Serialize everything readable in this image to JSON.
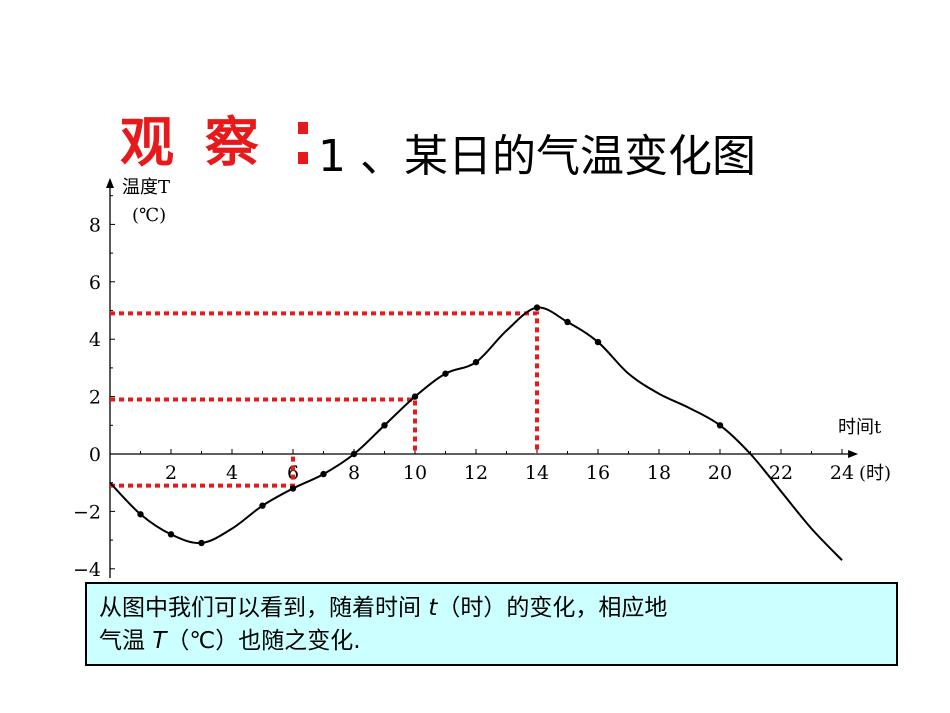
{
  "title": {
    "label": "观 察",
    "text": "1 、某日的气温变化图"
  },
  "chart_data": {
    "type": "line",
    "title": "",
    "xlabel": "时间t",
    "xunit": "(时)",
    "ylabel": "温度T",
    "yunit": "(℃)",
    "xlim": [
      0,
      24.2
    ],
    "ylim": [
      -4,
      9
    ],
    "x_ticks": [
      2,
      4,
      6,
      8,
      10,
      12,
      14,
      16,
      18,
      20,
      22,
      24
    ],
    "y_ticks": [
      -4,
      -2,
      0,
      2,
      4,
      6,
      8
    ],
    "grid": false,
    "curve": {
      "x": [
        0,
        1,
        2,
        3,
        4,
        5,
        6,
        7,
        8,
        9,
        10,
        11,
        12,
        13,
        14,
        15,
        16,
        17,
        18,
        19,
        20,
        21,
        22,
        23,
        24
      ],
      "y": [
        -1.0,
        -2.1,
        -2.8,
        -3.1,
        -2.6,
        -1.8,
        -1.2,
        -0.7,
        0.0,
        1.0,
        2.0,
        2.8,
        3.2,
        4.3,
        5.1,
        4.6,
        3.9,
        2.8,
        2.1,
        1.6,
        1.0,
        0.0,
        -1.3,
        -2.6,
        -3.7
      ]
    },
    "points": {
      "x": [
        1,
        2,
        3,
        5,
        6,
        7,
        8,
        9,
        10,
        11,
        12,
        14,
        15,
        16,
        20
      ],
      "y": [
        -2.1,
        -2.8,
        -3.1,
        -1.8,
        -1.2,
        -0.7,
        0.0,
        1.0,
        2.0,
        2.8,
        3.2,
        5.1,
        4.6,
        3.9,
        1.0
      ]
    },
    "reference_points": [
      {
        "x": 6,
        "y": -1.1
      },
      {
        "x": 10,
        "y": 1.9
      },
      {
        "x": 14,
        "y": 4.9
      }
    ],
    "colors": {
      "curve": "#000000",
      "reference": "#e8191b"
    }
  },
  "note": {
    "line1_prefix": "从图中我们可以看到，随着时间 ",
    "line1_var": "t",
    "line1_suffix": "（时）的变化，相应地",
    "line2_prefix": "气温 ",
    "line2_var": "T",
    "line2_suffix": "（℃）也随之变化."
  }
}
